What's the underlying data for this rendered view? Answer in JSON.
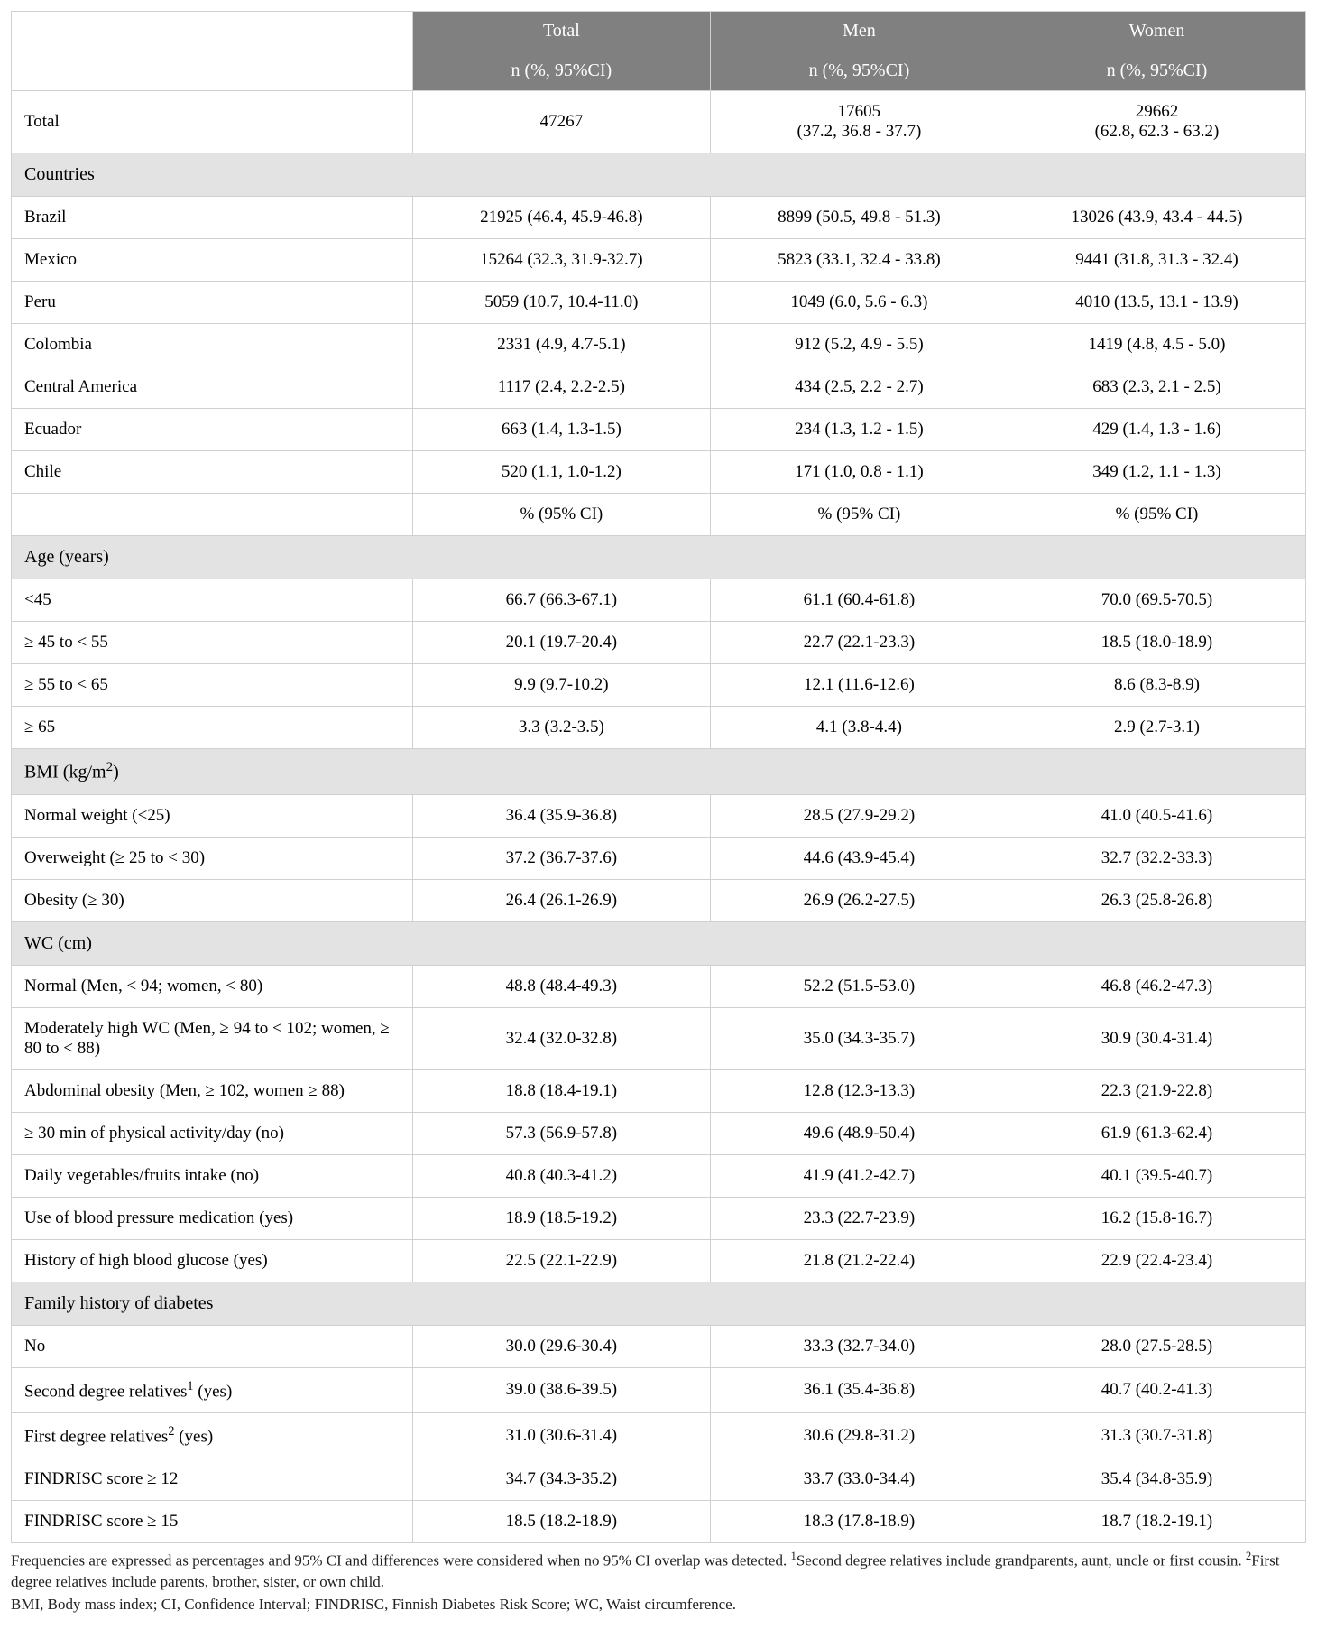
{
  "colors": {
    "header_bg": "#808080",
    "header_fg": "#ffffff",
    "section_bg": "#e3e3e3",
    "border": "#d0d0d0",
    "page_bg": "#ffffff",
    "text": "#000000"
  },
  "typography": {
    "body_font": "Minion Pro / Times New Roman",
    "cell_fontsize_pt": 14,
    "header_fontsize_pt": 15,
    "footnote_fontsize_pt": 13
  },
  "layout": {
    "col_widths_pct": [
      31,
      23,
      23,
      23
    ]
  },
  "header": {
    "row1": [
      "Total",
      "Men",
      "Women"
    ],
    "row2": "n (%, 95%CI)"
  },
  "subheader_row": {
    "label": "",
    "cell": "% (95% CI)"
  },
  "total_row": {
    "label": "Total",
    "total": "47267",
    "men": "17605\n(37.2, 36.8 - 37.7)",
    "women": "29662\n(62.8, 62.3 - 63.2)"
  },
  "sections": [
    {
      "title": "Countries",
      "title_html": "Countries",
      "rows": [
        {
          "label": "Brazil",
          "total": "21925 (46.4, 45.9-46.8)",
          "men": "8899 (50.5, 49.8 - 51.3)",
          "women": "13026 (43.9, 43.4 - 44.5)"
        },
        {
          "label": "Mexico",
          "total": "15264 (32.3, 31.9-32.7)",
          "men": "5823 (33.1, 32.4 - 33.8)",
          "women": "9441 (31.8, 31.3 - 32.4)"
        },
        {
          "label": "Peru",
          "total": "5059 (10.7, 10.4-11.0)",
          "men": "1049 (6.0, 5.6 - 6.3)",
          "women": "4010 (13.5, 13.1 - 13.9)"
        },
        {
          "label": "Colombia",
          "total": "2331 (4.9, 4.7-5.1)",
          "men": "912 (5.2, 4.9 - 5.5)",
          "women": "1419 (4.8, 4.5 - 5.0)"
        },
        {
          "label": "Central America",
          "total": "1117 (2.4, 2.2-2.5)",
          "men": "434 (2.5, 2.2 - 2.7)",
          "women": "683 (2.3, 2.1 - 2.5)"
        },
        {
          "label": "Ecuador",
          "total": "663 (1.4, 1.3-1.5)",
          "men": "234 (1.3, 1.2 - 1.5)",
          "women": "429 (1.4, 1.3 - 1.6)"
        },
        {
          "label": "Chile",
          "total": "520 (1.1, 1.0-1.2)",
          "men": "171 (1.0, 0.8 - 1.1)",
          "women": "349 (1.2, 1.1 - 1.3)"
        }
      ],
      "append_subheader_after": true
    },
    {
      "title": "Age (years)",
      "title_html": "Age (years)",
      "rows": [
        {
          "label": "<45",
          "total": "66.7 (66.3-67.1)",
          "men": "61.1 (60.4-61.8)",
          "women": "70.0 (69.5-70.5)"
        },
        {
          "label": "≥ 45 to < 55",
          "total": "20.1 (19.7-20.4)",
          "men": "22.7 (22.1-23.3)",
          "women": "18.5 (18.0-18.9)"
        },
        {
          "label": "≥ 55 to < 65",
          "total": "9.9 (9.7-10.2)",
          "men": "12.1 (11.6-12.6)",
          "women": "8.6 (8.3-8.9)"
        },
        {
          "label": "≥ 65",
          "total": "3.3 (3.2-3.5)",
          "men": "4.1 (3.8-4.4)",
          "women": "2.9 (2.7-3.1)"
        }
      ]
    },
    {
      "title": "BMI (kg/m2)",
      "title_html": "BMI (kg/m<sup>2</sup>)",
      "rows": [
        {
          "label": "Normal weight (<25)",
          "total": "36.4 (35.9-36.8)",
          "men": "28.5 (27.9-29.2)",
          "women": "41.0 (40.5-41.6)"
        },
        {
          "label": "Overweight (≥ 25 to < 30)",
          "total": "37.2 (36.7-37.6)",
          "men": "44.6 (43.9-45.4)",
          "women": "32.7 (32.2-33.3)"
        },
        {
          "label": "Obesity (≥ 30)",
          "total": "26.4 (26.1-26.9)",
          "men": "26.9 (26.2-27.5)",
          "women": "26.3 (25.8-26.8)"
        }
      ]
    },
    {
      "title": "WC (cm)",
      "title_html": "WC (cm)",
      "rows": [
        {
          "label": "Normal (Men, < 94; women, < 80)",
          "total": "48.8 (48.4-49.3)",
          "men": "52.2 (51.5-53.0)",
          "women": "46.8 (46.2-47.3)"
        },
        {
          "label": "Moderately high WC (Men, ≥ 94 to < 102; women, ≥ 80 to < 88)",
          "total": "32.4 (32.0-32.8)",
          "men": "35.0 (34.3-35.7)",
          "women": "30.9 (30.4-31.4)"
        },
        {
          "label": "Abdominal obesity (Men, ≥ 102, women ≥ 88)",
          "total": "18.8 (18.4-19.1)",
          "men": "12.8 (12.3-13.3)",
          "women": "22.3 (21.9-22.8)"
        },
        {
          "label": "≥ 30 min of physical activity/day (no)",
          "total": "57.3 (56.9-57.8)",
          "men": "49.6 (48.9-50.4)",
          "women": "61.9 (61.3-62.4)"
        },
        {
          "label": "Daily vegetables/fruits intake (no)",
          "total": "40.8 (40.3-41.2)",
          "men": "41.9 (41.2-42.7)",
          "women": "40.1 (39.5-40.7)"
        },
        {
          "label": "Use of blood pressure medication (yes)",
          "total": "18.9 (18.5-19.2)",
          "men": "23.3 (22.7-23.9)",
          "women": "16.2 (15.8-16.7)"
        },
        {
          "label": "History of high blood glucose (yes)",
          "total": "22.5 (22.1-22.9)",
          "men": "21.8 (21.2-22.4)",
          "women": "22.9 (22.4-23.4)"
        }
      ]
    },
    {
      "title": "Family history of diabetes",
      "title_html": "Family history of diabetes",
      "rows": [
        {
          "label": "No",
          "total": "30.0 (29.6-30.4)",
          "men": "33.3 (32.7-34.0)",
          "women": "28.0 (27.5-28.5)"
        },
        {
          "label_html": "Second degree relatives<sup>1</sup> (yes)",
          "label": "Second degree relatives1 (yes)",
          "total": "39.0 (38.6-39.5)",
          "men": "36.1 (35.4-36.8)",
          "women": "40.7 (40.2-41.3)"
        },
        {
          "label_html": "First degree relatives<sup>2</sup> (yes)",
          "label": "First degree relatives2 (yes)",
          "total": "31.0 (30.6-31.4)",
          "men": "30.6 (29.8-31.2)",
          "women": "31.3 (30.7-31.8)"
        },
        {
          "label": "FINDRISC score ≥ 12",
          "total": "34.7 (34.3-35.2)",
          "men": "33.7 (33.0-34.4)",
          "women": "35.4 (34.8-35.9)"
        },
        {
          "label": "FINDRISC score ≥ 15",
          "total": "18.5 (18.2-18.9)",
          "men": "18.3 (17.8-18.9)",
          "women": "18.7 (18.2-19.1)"
        }
      ]
    }
  ],
  "footnotes": {
    "line1_html": "Frequencies are expressed as percentages and 95% CI and differences were considered when no 95% CI overlap was detected. <sup>1</sup>Second degree relatives include grandparents, aunt, uncle or first cousin. <sup>2</sup>First degree relatives include parents, brother, sister, or own child.",
    "line2": "BMI, Body mass index; CI, Confidence Interval; FINDRISC, Finnish Diabetes Risk Score; WC, Waist circumference."
  }
}
